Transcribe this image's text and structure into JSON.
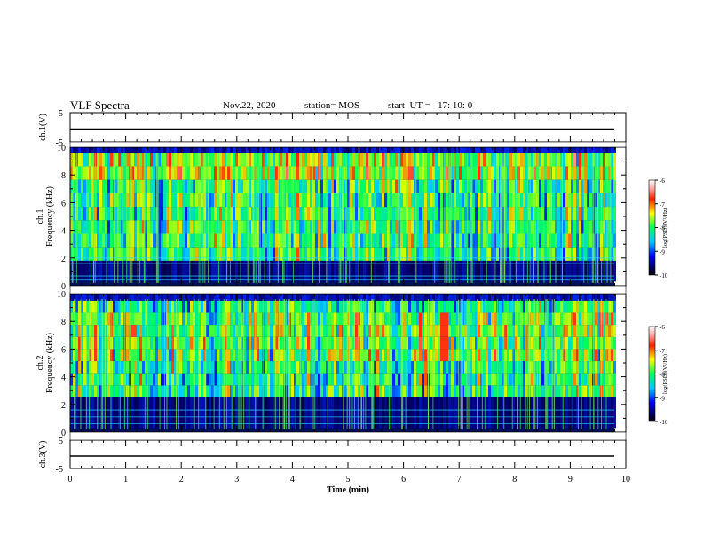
{
  "header": {
    "title": "VLF Spectra",
    "date": "Nov.22, 2020",
    "station": "station= MOS",
    "start_ut": "start  UT =   17: 10: 0"
  },
  "chart_data": [
    {
      "type": "line",
      "title": "",
      "ylabel": "ch.1(V)",
      "ylim": [
        -5,
        5
      ],
      "yticks": [
        5,
        -5
      ],
      "series": [
        {
          "values_description_free": true,
          "y": 0
        }
      ]
    },
    {
      "type": "heatmap",
      "ylabel": "ch.1  Frequency (kHz)",
      "ylim": [
        0,
        10
      ],
      "yticks": [
        0,
        2,
        4,
        6,
        8,
        10
      ],
      "colorbar": {
        "label": "log(PSD)(V²/Hz)",
        "range": [
          -10,
          -6
        ],
        "ticks": [
          -10,
          -9,
          -8,
          -7,
          -6
        ]
      },
      "dominant_band_khz": [
        2,
        9.5
      ],
      "quiet_band_khz": [
        0.3,
        1.8
      ]
    },
    {
      "type": "heatmap",
      "ylabel": "ch.2  Frequency (kHz)",
      "ylim": [
        0,
        10
      ],
      "yticks": [
        0,
        2,
        4,
        6,
        8,
        10
      ],
      "colorbar": {
        "label": "log(PSD)(V²/Hz)",
        "range": [
          -10,
          -6
        ],
        "ticks": [
          -10,
          -9,
          -8,
          -7,
          -6
        ]
      },
      "dominant_band_khz": [
        3,
        9
      ],
      "hotspot": {
        "time_min": 6.7,
        "freq_khz": [
          5,
          8
        ]
      }
    },
    {
      "type": "line",
      "ylabel": "ch.3(V)",
      "ylim": [
        -5,
        5
      ],
      "yticks": [
        5,
        -5
      ],
      "xlabel": "Time (min)",
      "xlim": [
        0,
        10
      ],
      "xticks": [
        0,
        1,
        2,
        3,
        4,
        5,
        6,
        7,
        8,
        9,
        10
      ],
      "series": [
        {
          "y": 0
        }
      ]
    }
  ],
  "axis_text": {
    "ch1_volt": "ch.1(V)",
    "ch3_volt": "ch.3(V)",
    "ch1_freq": "ch.1",
    "ch2_freq": "ch.2",
    "freq": "Frequency (kHz)",
    "xlabel": "Time (min)",
    "cbar_label": "log(PSD)(V²/Hz)"
  }
}
